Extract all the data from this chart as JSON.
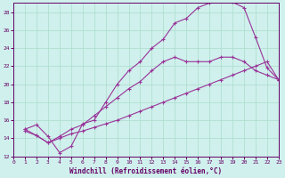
{
  "xlabel": "Windchill (Refroidissement éolien,°C)",
  "bg_color": "#cff0ec",
  "line_color": "#993399",
  "grid_color": "#aaddcc",
  "xmin": 0,
  "xmax": 23,
  "ymin": 12,
  "ymax": 29,
  "xticks": [
    0,
    1,
    2,
    3,
    4,
    5,
    6,
    7,
    8,
    9,
    10,
    11,
    12,
    13,
    14,
    15,
    16,
    17,
    18,
    19,
    20,
    21,
    22,
    23
  ],
  "yticks": [
    12,
    14,
    16,
    18,
    20,
    22,
    24,
    26,
    28
  ],
  "line1_x": [
    1,
    2,
    3,
    4,
    5,
    6,
    7,
    8,
    9,
    10,
    11,
    12,
    13,
    14,
    15,
    16,
    17,
    18,
    19,
    20,
    21,
    22,
    23
  ],
  "line1_y": [
    15.0,
    15.5,
    14.2,
    12.4,
    13.1,
    15.6,
    16.0,
    18.0,
    20.0,
    21.5,
    22.5,
    24.0,
    25.0,
    26.8,
    27.3,
    28.5,
    29.0,
    29.2,
    29.1,
    28.5,
    25.2,
    21.8,
    20.5
  ],
  "line2_x": [
    1,
    2,
    3,
    4,
    5,
    6,
    7,
    8,
    9,
    10,
    11,
    12,
    13,
    14,
    15,
    16,
    17,
    18,
    19,
    20,
    21,
    22,
    23
  ],
  "line2_y": [
    15.0,
    14.3,
    13.5,
    14.2,
    15.0,
    15.5,
    16.5,
    17.5,
    18.5,
    19.5,
    20.3,
    21.5,
    22.5,
    23.0,
    22.5,
    22.5,
    22.5,
    23.0,
    23.0,
    22.5,
    21.5,
    21.0,
    20.5
  ],
  "line3_x": [
    1,
    2,
    3,
    4,
    5,
    6,
    7,
    8,
    9,
    10,
    11,
    12,
    13,
    14,
    15,
    16,
    17,
    18,
    19,
    20,
    21,
    22,
    23
  ],
  "line3_y": [
    14.8,
    14.3,
    13.5,
    14.0,
    14.5,
    14.8,
    15.2,
    15.6,
    16.0,
    16.5,
    17.0,
    17.5,
    18.0,
    18.5,
    19.0,
    19.5,
    20.0,
    20.5,
    21.0,
    21.5,
    22.0,
    22.5,
    20.5
  ]
}
